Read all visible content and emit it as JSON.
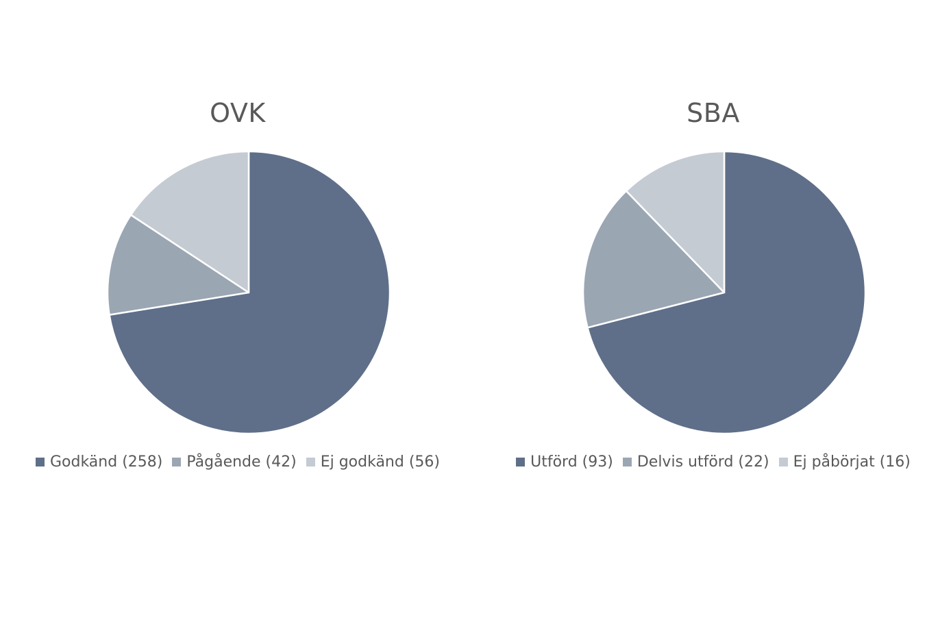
{
  "colors": {
    "dark": "#5f6f89",
    "mid": "#9ba6b3",
    "light": "#c5cbd3"
  },
  "chart_data": [
    {
      "type": "pie",
      "title": "OVK",
      "categories": [
        "Godkänd (258)",
        "Pågående (42)",
        "Ej godkänd (56)"
      ],
      "values": [
        258,
        42,
        56
      ],
      "colors": [
        "#5f6f89",
        "#9ba6b3",
        "#c5cbd3"
      ],
      "legend": "bottom"
    },
    {
      "type": "pie",
      "title": "SBA",
      "categories": [
        "Utförd (93)",
        "Delvis utförd (22)",
        "Ej påbörjat (16)"
      ],
      "values": [
        93,
        22,
        16
      ],
      "colors": [
        "#5f6f89",
        "#9ba6b3",
        "#c5cbd3"
      ],
      "legend": "bottom"
    }
  ]
}
